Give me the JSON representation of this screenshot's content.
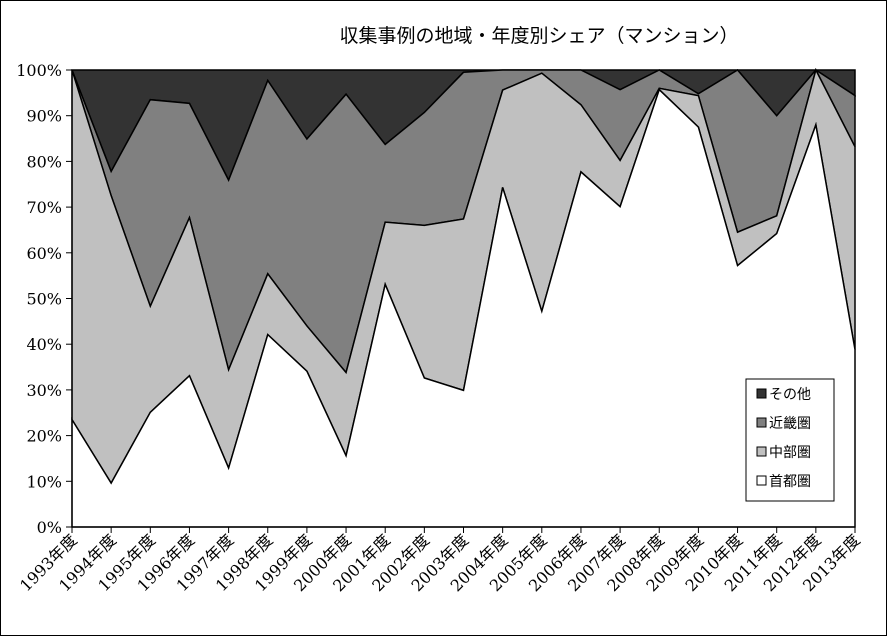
{
  "chart_data": {
    "type": "area",
    "stacked": "percent",
    "title": "収集事例の地域・年度別シェア（マンション）",
    "xlabel": "",
    "ylabel": "",
    "ylim": [
      0,
      100
    ],
    "y_ticks": [
      "0%",
      "10%",
      "20%",
      "30%",
      "40%",
      "50%",
      "60%",
      "70%",
      "80%",
      "90%",
      "100%"
    ],
    "categories": [
      "1993年度",
      "1994年度",
      "1995年度",
      "1996年度",
      "1997年度",
      "1998年度",
      "1999年度",
      "2000年度",
      "2001年度",
      "2002年度",
      "2003年度",
      "2004年度",
      "2005年度",
      "2006年度",
      "2007年度",
      "2008年度",
      "2009年度",
      "2010年度",
      "2011年度",
      "2012年度",
      "2013年度"
    ],
    "series": [
      {
        "name": "首都圏",
        "color": "#ffffff",
        "values": [
          23.5,
          9.6,
          25.1,
          33.1,
          12.9,
          42.1,
          34.1,
          15.6,
          53.1,
          32.6,
          29.9,
          74.3,
          47.2,
          77.7,
          70.1,
          95.7,
          87.5,
          57.2,
          64.2,
          88.0,
          38.8
        ]
      },
      {
        "name": "中部圏",
        "color": "#c0c0c0",
        "values": [
          76.5,
          62.9,
          23.2,
          34.6,
          21.5,
          13.3,
          9.9,
          18.2,
          13.6,
          33.4,
          37.5,
          21.3,
          52.1,
          14.7,
          10.1,
          0.3,
          6.9,
          7.3,
          3.9,
          12.0,
          44.4
        ]
      },
      {
        "name": "近畿圏",
        "color": "#808080",
        "values": [
          0.0,
          5.3,
          45.2,
          25.0,
          41.5,
          42.3,
          40.9,
          60.9,
          17.0,
          24.7,
          32.1,
          4.4,
          0.7,
          7.6,
          15.5,
          4.0,
          0.4,
          35.5,
          21.9,
          0.0,
          11.2
        ]
      },
      {
        "name": "その他",
        "color": "#333333",
        "values": [
          0.0,
          22.2,
          6.5,
          7.3,
          24.1,
          2.3,
          15.1,
          5.3,
          16.3,
          9.3,
          0.5,
          0.0,
          0.0,
          0.0,
          4.3,
          0.0,
          5.2,
          0.0,
          10.0,
          0.0,
          5.6
        ]
      }
    ],
    "legend": {
      "placement": "right-bottom",
      "order": [
        "その他",
        "近畿圏",
        "中部圏",
        "首都圏"
      ]
    },
    "grid": false
  }
}
